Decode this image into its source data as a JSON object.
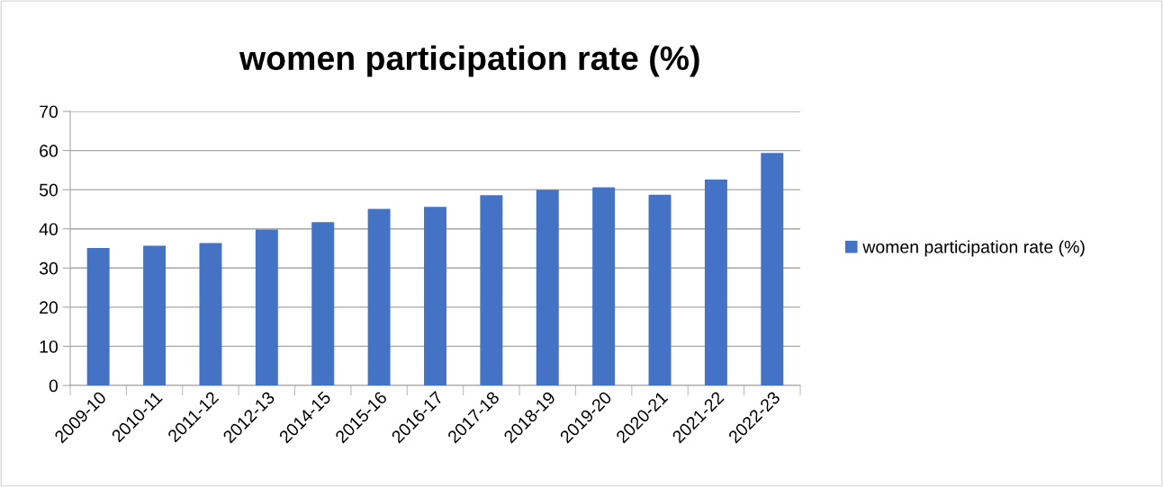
{
  "chart_data": {
    "type": "bar",
    "title": "women participation rate (%)",
    "categories": [
      "2009-10",
      "2010-11",
      "2011-12",
      "2012-13",
      "2014-15",
      "2015-16",
      "2016-17",
      "2017-18",
      "2018-19",
      "2019-20",
      "2020-21",
      "2021-22",
      "2022-23"
    ],
    "series": [
      {
        "name": "women participation rate (%)",
        "color": "#4472c4",
        "values": [
          35.1,
          35.7,
          36.4,
          39.8,
          41.7,
          45.1,
          45.6,
          48.6,
          50.0,
          50.6,
          48.7,
          52.6,
          59.4
        ]
      }
    ],
    "ylim": [
      0,
      70
    ],
    "yticks": [
      0,
      10,
      20,
      30,
      40,
      50,
      60,
      70
    ],
    "grid": "y",
    "legend": "right"
  }
}
